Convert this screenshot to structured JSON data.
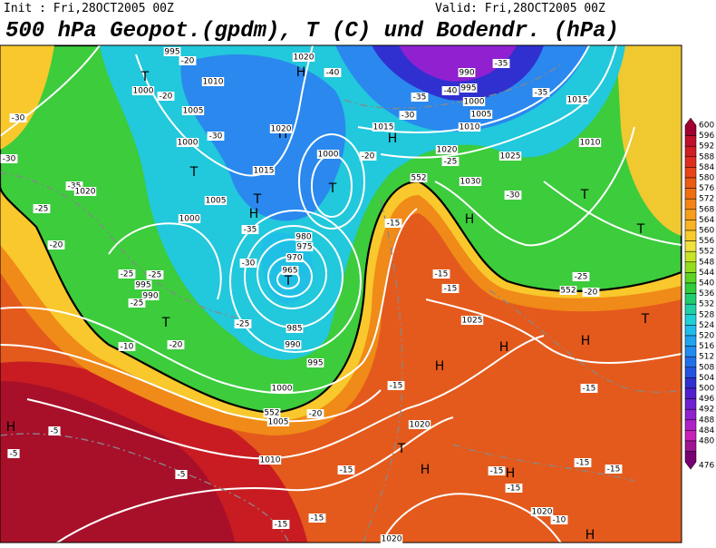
{
  "header": {
    "init": "Init : Fri,28OCT2005 00Z",
    "valid": "Valid: Fri,28OCT2005 00Z",
    "title": "500 hPa Geopot.(gpdm), T (C) und Bodendr. (hPa)"
  },
  "colorbar": {
    "levels": [
      600,
      596,
      592,
      588,
      584,
      580,
      576,
      572,
      568,
      564,
      560,
      556,
      552,
      548,
      544,
      540,
      536,
      532,
      528,
      524,
      520,
      516,
      512,
      508,
      504,
      500,
      496,
      492,
      488,
      484,
      480,
      476
    ],
    "colors": [
      "#a00030",
      "#c0102c",
      "#d01e22",
      "#e02e1e",
      "#e8441a",
      "#ec5a14",
      "#f06e12",
      "#f48416",
      "#f89c1c",
      "#f8b424",
      "#f8cc2c",
      "#f0e040",
      "#c8e428",
      "#94dc20",
      "#5cd424",
      "#30cc3c",
      "#20cc70",
      "#20d0a8",
      "#20d0d8",
      "#20bcec",
      "#20a4f0",
      "#208cf0",
      "#2070ec",
      "#2454e0",
      "#3030d0",
      "#5020d0",
      "#7020d0",
      "#9020d0",
      "#b020c8",
      "#c820b8",
      "#a01494",
      "#780070"
    ]
  },
  "map_labels": [
    "T",
    "995",
    "-20",
    "1000",
    "-20",
    "1010",
    "1020",
    "H",
    "-40",
    "990",
    "-35",
    "995",
    "-40",
    "1000",
    "-35",
    "1005",
    "-35",
    "1015",
    "1005",
    "-30",
    "-30",
    "1010",
    "1015",
    "-30",
    "H",
    "1020",
    "H",
    "1000",
    "1010",
    "1020",
    "1000",
    "1025",
    "-20",
    "-30",
    "T",
    "1015",
    "-25",
    "T",
    "1030",
    "-30",
    "-35",
    "1020",
    "1005",
    "T",
    "T",
    "-25",
    "1000",
    "H",
    "H",
    "-35",
    "-15",
    "T",
    "-20",
    "980",
    "975",
    "970",
    "-30",
    "965",
    "T",
    "-25",
    "-25",
    "995",
    "990",
    "-25",
    "-15",
    "-15",
    "-25",
    "-20",
    "1025",
    "T",
    "-25",
    "985",
    "990",
    "-10",
    "-20",
    "995",
    "H",
    "H",
    "H",
    "T",
    "1000",
    "-15",
    "-15",
    "1005",
    "-20",
    "1020",
    "-5",
    "-5",
    "H",
    "T",
    "1010",
    "-5",
    "-15",
    "H",
    "H",
    "-15",
    "-15",
    "-15",
    "-15",
    "1020",
    "-10",
    "-15",
    "-15",
    "H",
    "1020",
    "552",
    "552",
    "552"
  ]
}
